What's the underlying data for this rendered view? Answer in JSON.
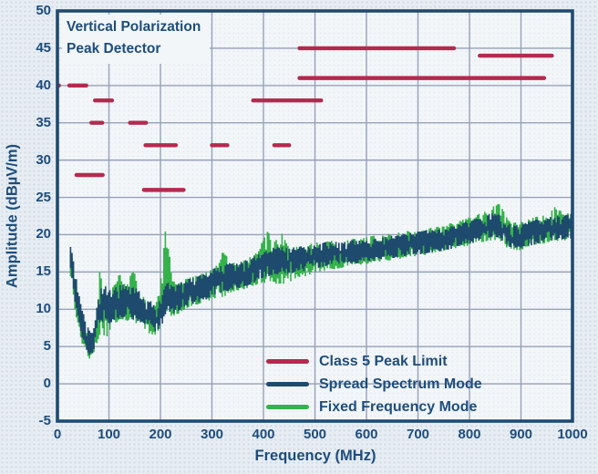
{
  "chart_data": {
    "type": "line",
    "title": "",
    "xlabel": "Frequency (MHz)",
    "ylabel": "Amplitude (dBµV/m)",
    "xlim": [
      0,
      1000
    ],
    "ylim": [
      -5,
      50
    ],
    "xticks": [
      0,
      100,
      200,
      300,
      400,
      500,
      600,
      700,
      800,
      900,
      1000
    ],
    "yticks": [
      -5,
      0,
      5,
      10,
      15,
      20,
      25,
      30,
      35,
      40,
      45,
      50
    ],
    "grid": true,
    "legend_position": "lower right",
    "annotations": [
      "Vertical Polarization",
      "Peak Detector"
    ],
    "colors": {
      "background": "#e7edf3",
      "plot_background": "#f3f6f9",
      "grid": "#96a0ba",
      "axis": "#1f4b70",
      "text": "#1d4d7c"
    },
    "legend": [
      {
        "label": "Class 5 Peak Limit",
        "color": "#b42a4e"
      },
      {
        "label": "Spread Spectrum Mode",
        "color": "#1e4a6d"
      },
      {
        "label": "Fixed Frequency Mode",
        "color": "#35b24b"
      }
    ],
    "limit_series": {
      "name": "Class 5 Peak Limit",
      "color": "#b42a4e",
      "units": "dBµV/m",
      "segments": [
        {
          "range_mhz": [
            0,
            3
          ],
          "level": 40
        },
        {
          "range_mhz": [
            23,
            56
          ],
          "level": 40
        },
        {
          "range_mhz": [
            37,
            88
          ],
          "level": 28
        },
        {
          "range_mhz": [
            66,
            87
          ],
          "level": 35
        },
        {
          "range_mhz": [
            73,
            106
          ],
          "level": 38
        },
        {
          "range_mhz": [
            141,
            172
          ],
          "level": 35
        },
        {
          "range_mhz": [
            168,
            245
          ],
          "level": 26
        },
        {
          "range_mhz": [
            171,
            230
          ],
          "level": 32
        },
        {
          "range_mhz": [
            300,
            330
          ],
          "level": 32
        },
        {
          "range_mhz": [
            380,
            512
          ],
          "level": 38
        },
        {
          "range_mhz": [
            421,
            450
          ],
          "level": 32
        },
        {
          "range_mhz": [
            470,
            770
          ],
          "level": 45
        },
        {
          "range_mhz": [
            470,
            945
          ],
          "level": 41
        },
        {
          "range_mhz": [
            820,
            960
          ],
          "level": 44
        }
      ]
    },
    "series": [
      {
        "name": "Fixed Frequency Mode",
        "color": "#35b24b",
        "style": "noisy-band",
        "envelope_mhz_lo_hi": [
          [
            24,
            13.8,
            18
          ],
          [
            27,
            14.2,
            18.2
          ],
          [
            30,
            12.8,
            17.2
          ],
          [
            35,
            10,
            14.5
          ],
          [
            42,
            7.5,
            11.5
          ],
          [
            50,
            5.2,
            9
          ],
          [
            58,
            3.8,
            7.2
          ],
          [
            66,
            2.9,
            6.3
          ],
          [
            72,
            4,
            7.2
          ],
          [
            78,
            5.5,
            9.5
          ],
          [
            84,
            6,
            17.3
          ],
          [
            88,
            5.5,
            12
          ],
          [
            95,
            5.8,
            13.2
          ],
          [
            105,
            7.5,
            12.8
          ],
          [
            115,
            8.2,
            13.6
          ],
          [
            122,
            8.5,
            15
          ],
          [
            128,
            8.6,
            13.6
          ],
          [
            136,
            8.4,
            13.4
          ],
          [
            144,
            8.3,
            15.3
          ],
          [
            152,
            8.2,
            14.8
          ],
          [
            160,
            7.8,
            12.4
          ],
          [
            170,
            7.2,
            11.6
          ],
          [
            180,
            6.6,
            10.8
          ],
          [
            190,
            6.2,
            10.2
          ],
          [
            198,
            6.8,
            12.5
          ],
          [
            205,
            7.8,
            16.5
          ],
          [
            210,
            8.8,
            21.3
          ],
          [
            216,
            8.8,
            18.8
          ],
          [
            222,
            8.6,
            15.8
          ],
          [
            230,
            9,
            13.6
          ],
          [
            240,
            9.6,
            13.8
          ],
          [
            252,
            10.1,
            14.1
          ],
          [
            265,
            10.4,
            14.4
          ],
          [
            278,
            10.7,
            14.7
          ],
          [
            290,
            11,
            15.1
          ],
          [
            302,
            11.3,
            15.5
          ],
          [
            315,
            11.7,
            16.1
          ],
          [
            325,
            11,
            18.6
          ],
          [
            335,
            12.1,
            16.3
          ],
          [
            345,
            12.4,
            16.5
          ],
          [
            360,
            12.6,
            16.7
          ],
          [
            375,
            12.9,
            17
          ],
          [
            390,
            13.3,
            17.8
          ],
          [
            400,
            13.6,
            19.4
          ],
          [
            410,
            13.2,
            21.2
          ],
          [
            420,
            13.4,
            19
          ],
          [
            432,
            13.3,
            19.6
          ],
          [
            440,
            13.2,
            21.7
          ],
          [
            450,
            13.5,
            18.3
          ],
          [
            465,
            13.9,
            18.4
          ],
          [
            480,
            14.3,
            18.6
          ],
          [
            500,
            14.9,
            18.9
          ],
          [
            520,
            15.2,
            19.1
          ],
          [
            540,
            15.4,
            19.3
          ],
          [
            560,
            15.6,
            19.4
          ],
          [
            580,
            15.8,
            19.5
          ],
          [
            600,
            16,
            19.7
          ],
          [
            620,
            16.2,
            19.9
          ],
          [
            640,
            16.4,
            20.1
          ],
          [
            660,
            16.7,
            20.3
          ],
          [
            680,
            16.9,
            20.5
          ],
          [
            700,
            17.1,
            20.7
          ],
          [
            720,
            17.3,
            20.9
          ],
          [
            740,
            17.6,
            21.2
          ],
          [
            760,
            17.9,
            21.5
          ],
          [
            780,
            18.2,
            21.9
          ],
          [
            800,
            18.5,
            22.3
          ],
          [
            820,
            18.9,
            22.8
          ],
          [
            840,
            19.2,
            23.3
          ],
          [
            858,
            19.3,
            24.6
          ],
          [
            878,
            18,
            21.9
          ],
          [
            895,
            17.8,
            21.6
          ],
          [
            912,
            18.1,
            22.1
          ],
          [
            930,
            18.5,
            22.4
          ],
          [
            950,
            18.9,
            22.7
          ],
          [
            968,
            19.1,
            23.8
          ],
          [
            985,
            19.2,
            22.9
          ],
          [
            1000,
            19.3,
            23
          ]
        ]
      },
      {
        "name": "Spread Spectrum Mode",
        "color": "#1e4a6d",
        "style": "noisy-band",
        "envelope_mhz_lo_hi": [
          [
            24,
            14.5,
            18.5
          ],
          [
            27,
            15,
            18.7
          ],
          [
            30,
            13.8,
            18.2
          ],
          [
            35,
            11,
            15.5
          ],
          [
            42,
            8.5,
            12.5
          ],
          [
            50,
            6,
            10
          ],
          [
            58,
            4.5,
            8
          ],
          [
            66,
            3.6,
            7
          ],
          [
            72,
            4.5,
            7.8
          ],
          [
            80,
            7,
            11.5
          ],
          [
            86,
            8,
            12.8
          ],
          [
            95,
            8,
            13
          ],
          [
            105,
            8,
            12.6
          ],
          [
            115,
            8.5,
            13.2
          ],
          [
            125,
            8.8,
            13.4
          ],
          [
            135,
            8.8,
            13.2
          ],
          [
            145,
            8.6,
            13
          ],
          [
            155,
            8.4,
            12.8
          ],
          [
            165,
            8,
            12.3
          ],
          [
            175,
            7.6,
            11.6
          ],
          [
            185,
            7.2,
            11
          ],
          [
            193,
            7,
            10.7
          ],
          [
            200,
            7.4,
            11.2
          ],
          [
            207,
            8.3,
            12.4
          ],
          [
            213,
            9.3,
            13.8
          ],
          [
            220,
            9.2,
            13.4
          ],
          [
            230,
            9.4,
            13.3
          ],
          [
            240,
            9.9,
            13.6
          ],
          [
            252,
            10.4,
            14
          ],
          [
            265,
            10.7,
            14.3
          ],
          [
            278,
            11,
            14.6
          ],
          [
            290,
            11.3,
            15
          ],
          [
            302,
            11.7,
            15.4
          ],
          [
            315,
            12.1,
            15.8
          ],
          [
            330,
            12.4,
            16.1
          ],
          [
            345,
            12.7,
            16.4
          ],
          [
            360,
            12.9,
            16.6
          ],
          [
            375,
            13.2,
            16.9
          ],
          [
            390,
            13.7,
            17.4
          ],
          [
            405,
            14.2,
            17.9
          ],
          [
            420,
            14.6,
            18.4
          ],
          [
            435,
            14.7,
            18.4
          ],
          [
            450,
            14.7,
            18.2
          ],
          [
            465,
            14.9,
            18.3
          ],
          [
            480,
            15.1,
            18.5
          ],
          [
            500,
            15.5,
            18.8
          ],
          [
            520,
            15.7,
            19
          ],
          [
            540,
            15.9,
            19.1
          ],
          [
            560,
            16,
            19.2
          ],
          [
            580,
            16.1,
            19.3
          ],
          [
            600,
            16.3,
            19.5
          ],
          [
            620,
            16.5,
            19.6
          ],
          [
            640,
            16.7,
            19.8
          ],
          [
            660,
            16.9,
            20
          ],
          [
            680,
            17.1,
            20.2
          ],
          [
            700,
            17.3,
            20.4
          ],
          [
            720,
            17.5,
            20.6
          ],
          [
            740,
            17.7,
            20.8
          ],
          [
            760,
            18,
            21
          ],
          [
            780,
            18.3,
            21.4
          ],
          [
            800,
            18.7,
            21.9
          ],
          [
            820,
            19.1,
            22.3
          ],
          [
            840,
            19.5,
            22.8
          ],
          [
            858,
            19.5,
            22.9
          ],
          [
            878,
            18.2,
            21.5
          ],
          [
            895,
            18,
            21.3
          ],
          [
            912,
            18.4,
            21.7
          ],
          [
            930,
            18.7,
            22
          ],
          [
            950,
            19.1,
            22.3
          ],
          [
            970,
            19.3,
            22.5
          ],
          [
            1000,
            19.5,
            22.8
          ]
        ]
      }
    ]
  }
}
